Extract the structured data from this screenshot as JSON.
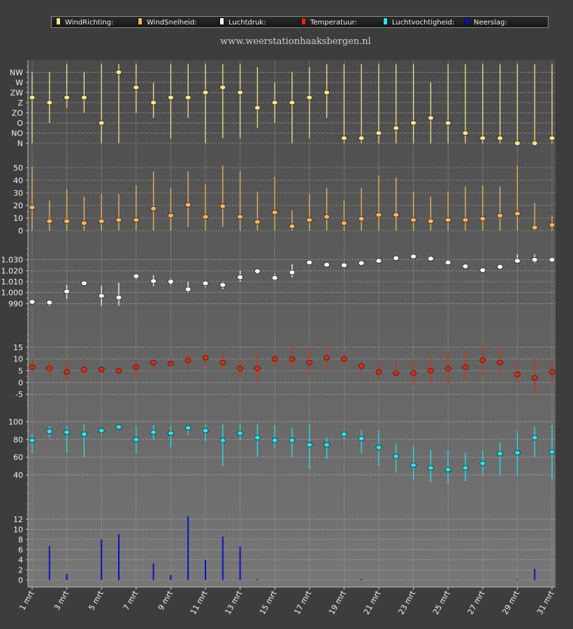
{
  "header": {
    "site": "www.weerstationhaaksbergen.nl",
    "legend": [
      {
        "label": "WindRichting:",
        "color": "#f5e48a"
      },
      {
        "label": "WindSnelheid:",
        "color": "#f7b45c"
      },
      {
        "label": "Luchtdruk:",
        "color": "#ffffff"
      },
      {
        "label": "Temperatuur:",
        "color": "#e22a10"
      },
      {
        "label": "Luchtvochtigheid:",
        "color": "#22e6f0"
      },
      {
        "label": "Neerslag:",
        "color": "#0a10c8"
      }
    ]
  },
  "chart_data": {
    "type": "multi-panel",
    "x_labels": [
      "1 mrt",
      "3 mrt",
      "5 mrt",
      "7 mrt",
      "9 mrt",
      "11 mrt",
      "13 mrt",
      "15 mrt",
      "17 mrt",
      "19 mrt",
      "21 mrt",
      "23 mrt",
      "25 mrt",
      "27 mrt",
      "29 mrt",
      "31 mrt"
    ],
    "days": [
      1,
      2,
      3,
      4,
      5,
      6,
      7,
      8,
      9,
      10,
      11,
      12,
      13,
      14,
      15,
      16,
      17,
      18,
      19,
      20,
      21,
      22,
      23,
      24,
      25,
      26,
      27,
      28,
      29,
      30,
      31
    ],
    "panels": [
      {
        "name": "WindRichting",
        "type": "range-dot",
        "color": "#f5e48a",
        "ylim": [
          0,
          7.5
        ],
        "ticks": [
          {
            "v": 0,
            "label": "N"
          },
          {
            "v": 1,
            "label": "NO"
          },
          {
            "v": 2,
            "label": "O"
          },
          {
            "v": 3,
            "label": "ZO"
          },
          {
            "v": 4,
            "label": "Z"
          },
          {
            "v": 5,
            "label": "ZW"
          },
          {
            "v": 6,
            "label": "W"
          },
          {
            "v": 7,
            "label": "NW"
          }
        ],
        "values": [
          4.5,
          4.0,
          4.5,
          4.5,
          2.0,
          7.0,
          5.5,
          4.0,
          4.5,
          4.5,
          5.0,
          5.5,
          5.0,
          3.5,
          4.0,
          4.0,
          4.5,
          5.0,
          0.5,
          0.5,
          1.0,
          1.5,
          2.0,
          2.5,
          2.0,
          1.0,
          0.5,
          0.5,
          0.0,
          0.0,
          0.5
        ],
        "low": [
          0.0,
          2.0,
          3.5,
          3.0,
          0.0,
          0.0,
          3.0,
          2.5,
          0.5,
          2.5,
          0.0,
          0.5,
          0.5,
          1.5,
          2.0,
          0.0,
          0.5,
          2.5,
          0.0,
          0.0,
          0.0,
          0.0,
          0.0,
          0.0,
          0.0,
          0.0,
          0.0,
          0.0,
          0.0,
          0.0,
          0.0
        ],
        "high": [
          7.0,
          7.0,
          8.0,
          7.0,
          8.0,
          8.0,
          8.0,
          6.0,
          8.0,
          8.0,
          8.0,
          8.0,
          8.0,
          7.5,
          6.0,
          7.0,
          7.5,
          8.0,
          8.0,
          8.0,
          8.0,
          8.0,
          8.0,
          6.0,
          8.0,
          8.0,
          8.0,
          8.0,
          8.0,
          8.0,
          8.0
        ]
      },
      {
        "name": "WindSnelheid",
        "type": "range-dot",
        "color": "#f7b45c",
        "ylim": [
          0,
          55
        ],
        "ticks": [
          {
            "v": 0,
            "label": "0"
          },
          {
            "v": 10,
            "label": "10"
          },
          {
            "v": 20,
            "label": "20"
          },
          {
            "v": 30,
            "label": "30"
          },
          {
            "v": 40,
            "label": "40"
          },
          {
            "v": 50,
            "label": "50"
          }
        ],
        "values": [
          18.5,
          7.5,
          7.5,
          6.0,
          7.5,
          8.5,
          8.5,
          17.5,
          12.0,
          20.5,
          11.0,
          19.5,
          11.0,
          7.0,
          14.5,
          3.5,
          8.5,
          11.0,
          6.0,
          9.5,
          12.5,
          12.5,
          8.5,
          7.5,
          8.5,
          8.5,
          9.5,
          12.0,
          13.5,
          2.5,
          4.5
        ],
        "low": [
          0,
          0,
          0,
          0,
          0,
          0,
          0,
          0,
          0,
          3,
          0,
          3,
          0,
          0,
          0,
          0,
          0,
          0,
          0,
          0,
          0,
          0,
          0,
          0,
          0,
          0,
          0,
          0,
          0,
          0,
          0
        ],
        "high": [
          51,
          24,
          33,
          27,
          29,
          29,
          36,
          47,
          34,
          47,
          37,
          52,
          47,
          31,
          43,
          16,
          29,
          34,
          24,
          34,
          44,
          42,
          31,
          27,
          31,
          35,
          36,
          35,
          52,
          22,
          12
        ]
      },
      {
        "name": "Luchtdruk",
        "type": "range-dot",
        "color": "#ffffff",
        "ylim": [
          980,
          1040
        ],
        "ticks": [
          {
            "v": 990,
            "label": "990"
          },
          {
            "v": 1000,
            "label": "1.000"
          },
          {
            "v": 1010,
            "label": "1.010"
          },
          {
            "v": 1020,
            "label": "1.020"
          },
          {
            "v": 1030,
            "label": "1.030"
          }
        ],
        "values": [
          991.5,
          991.0,
          1001.0,
          1008.5,
          997.0,
          995.5,
          1015.0,
          1010.5,
          1010.0,
          1003.0,
          1008.5,
          1007.0,
          1014.0,
          1019.5,
          1013.5,
          1018.5,
          1027.5,
          1025.5,
          1025.0,
          1027.0,
          1029.0,
          1031.5,
          1033.0,
          1031.0,
          1027.5,
          1024.0,
          1020.5,
          1023.5,
          1029.0,
          1030.0,
          1030.0
        ],
        "low": [
          990,
          988,
          994,
          1008,
          988,
          988,
          1012,
          1006,
          1007,
          1000,
          1005,
          1003,
          1010,
          1017,
          1011,
          1014,
          1026,
          1024,
          1024,
          1026,
          1028,
          1030,
          1032,
          1030,
          1025,
          1023,
          1019,
          1021,
          1027,
          1027,
          1029
        ],
        "high": [
          992,
          992,
          1007,
          1010,
          1006,
          1009,
          1016,
          1016,
          1013,
          1010,
          1010,
          1010,
          1020,
          1021,
          1017,
          1026,
          1028,
          1026,
          1026,
          1028,
          1030,
          1033,
          1034,
          1033,
          1030,
          1025,
          1022,
          1026,
          1035,
          1035,
          1031
        ]
      },
      {
        "name": "Temperatuur",
        "type": "range-dot",
        "color": "#e22a10",
        "ylim": [
          -10,
          20
        ],
        "ticks": [
          {
            "v": -5,
            "label": "-5"
          },
          {
            "v": 0,
            "label": "0"
          },
          {
            "v": 5,
            "label": "5"
          },
          {
            "v": 10,
            "label": "10"
          },
          {
            "v": 15,
            "label": "15"
          }
        ],
        "values": [
          6.5,
          6.0,
          4.5,
          5.5,
          5.5,
          5.0,
          6.5,
          8.5,
          8.0,
          9.5,
          10.5,
          8.5,
          6.0,
          6.0,
          10.0,
          10.0,
          8.5,
          10.5,
          10.0,
          7.0,
          4.5,
          4.0,
          4.0,
          5.0,
          6.0,
          6.5,
          9.5,
          8.5,
          3.5,
          2.0,
          4.5
        ],
        "low": [
          4,
          3,
          1,
          2,
          4,
          4,
          2,
          5,
          7,
          6,
          7,
          5,
          2,
          0,
          7,
          6,
          3,
          5,
          7,
          4,
          1,
          2,
          -1,
          -1,
          -1,
          1,
          3,
          3,
          0,
          -5,
          -1
        ],
        "high": [
          10,
          9,
          10,
          10,
          7,
          7,
          10,
          10,
          10,
          12,
          13,
          12,
          10,
          12,
          12,
          16,
          15,
          16,
          13,
          9,
          10,
          9,
          10,
          11,
          13,
          13,
          16,
          15,
          10,
          10,
          10
        ]
      },
      {
        "name": "Luchtvochtigheid",
        "type": "range-dot",
        "color": "#22e6f0",
        "ylim": [
          20,
          105
        ],
        "ticks": [
          {
            "v": 40,
            "label": "40"
          },
          {
            "v": 60,
            "label": "60"
          },
          {
            "v": 80,
            "label": "80"
          },
          {
            "v": 100,
            "label": "100"
          }
        ],
        "values": [
          79,
          89,
          88,
          86,
          90,
          94,
          80,
          88,
          87,
          93,
          90,
          79,
          87,
          82,
          79,
          79,
          74,
          74,
          86,
          81,
          71,
          61,
          51,
          48,
          46,
          48,
          53,
          64,
          65,
          82,
          66
        ],
        "low": [
          65,
          82,
          65,
          60,
          85,
          92,
          64,
          80,
          71,
          85,
          78,
          50,
          79,
          60,
          70,
          60,
          47,
          58,
          80,
          65,
          50,
          43,
          35,
          32,
          30,
          33,
          40,
          40,
          40,
          60,
          35
        ],
        "high": [
          86,
          95,
          95,
          97,
          93,
          96,
          95,
          96,
          95,
          96,
          97,
          97,
          97,
          97,
          96,
          93,
          97,
          82,
          91,
          90,
          90,
          75,
          72,
          68,
          68,
          65,
          68,
          77,
          89,
          94,
          96
        ]
      },
      {
        "name": "Neerslag",
        "type": "bar",
        "color": "#0a10c8",
        "ylim": [
          0,
          15
        ],
        "ticks": [
          {
            "v": 0,
            "label": "0"
          },
          {
            "v": 2,
            "label": "2"
          },
          {
            "v": 4,
            "label": "4"
          },
          {
            "v": 6,
            "label": "6"
          },
          {
            "v": 8,
            "label": "8"
          },
          {
            "v": 10,
            "label": "10"
          },
          {
            "v": 12,
            "label": "12"
          }
        ],
        "values": [
          0,
          6.7,
          1.2,
          0,
          8.0,
          9.0,
          0,
          3.3,
          1.0,
          12.6,
          4.0,
          8.6,
          6.6,
          0.2,
          0,
          0,
          0,
          0,
          0,
          0.2,
          0,
          0,
          0,
          0,
          0,
          0,
          0,
          0,
          0.2,
          2.2,
          0
        ]
      }
    ]
  }
}
